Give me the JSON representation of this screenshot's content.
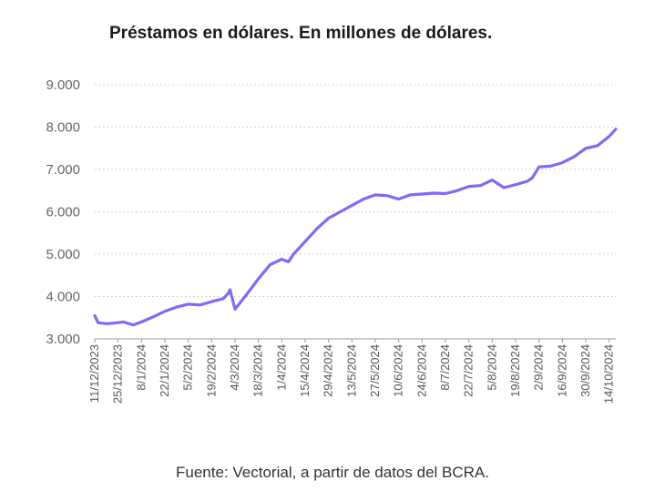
{
  "chart_data": {
    "type": "line",
    "title": "Préstamos en dólares. En millones de dólares.",
    "source": "Fuente: Vectorial, a partir de datos del BCRA.",
    "xlabel": "",
    "ylabel": "",
    "ylim": [
      3000,
      9000
    ],
    "yticks": [
      3000,
      4000,
      5000,
      6000,
      7000,
      8000,
      9000
    ],
    "ytick_labels": [
      "3.000",
      "4.000",
      "5.000",
      "6.000",
      "7.000",
      "8.000",
      "9.000"
    ],
    "x_ticks": [
      "11/12/2023",
      "25/12/2023",
      "8/1/2024",
      "22/1/2024",
      "5/2/2024",
      "19/2/2024",
      "4/3/2024",
      "18/3/2024",
      "1/4/2024",
      "15/4/2024",
      "29/4/2024",
      "13/5/2024",
      "27/5/2024",
      "10/6/2024",
      "24/6/2024",
      "8/7/2024",
      "22/7/2024",
      "5/8/2024",
      "19/8/2024",
      "2/9/2024",
      "16/9/2024",
      "30/9/2024",
      "14/10/2024"
    ],
    "grid": true,
    "line_color": "#7b6cf6",
    "series": [
      {
        "x": [
          "11/12/2023",
          "13/12/2023",
          "18/12/2023",
          "22/12/2023",
          "28/12/2023",
          "3/1/2024",
          "8/1/2024",
          "15/1/2024",
          "22/1/2024",
          "29/1/2024",
          "5/2/2024",
          "12/2/2024",
          "19/2/2024",
          "26/2/2024",
          "29/2/2024",
          "1/3/2024",
          "4/3/2024",
          "11/3/2024",
          "18/3/2024",
          "25/3/2024",
          "1/4/2024",
          "5/4/2024",
          "8/4/2024",
          "15/4/2024",
          "22/4/2024",
          "29/4/2024",
          "6/5/2024",
          "13/5/2024",
          "20/5/2024",
          "27/5/2024",
          "3/6/2024",
          "10/6/2024",
          "17/6/2024",
          "24/6/2024",
          "1/7/2024",
          "8/7/2024",
          "15/7/2024",
          "22/7/2024",
          "29/7/2024",
          "5/8/2024",
          "12/8/2024",
          "19/8/2024",
          "26/8/2024",
          "29/8/2024",
          "2/9/2024",
          "9/9/2024",
          "16/9/2024",
          "23/9/2024",
          "30/9/2024",
          "7/10/2024",
          "14/10/2024",
          "18/10/2024"
        ],
        "values": [
          3550,
          3380,
          3360,
          3370,
          3400,
          3330,
          3400,
          3520,
          3650,
          3750,
          3820,
          3800,
          3880,
          3950,
          4080,
          4160,
          3700,
          4050,
          4420,
          4750,
          4880,
          4820,
          5000,
          5300,
          5600,
          5850,
          6000,
          6150,
          6300,
          6400,
          6380,
          6300,
          6400,
          6420,
          6440,
          6430,
          6500,
          6600,
          6620,
          6750,
          6570,
          6640,
          6720,
          6800,
          7060,
          7080,
          7160,
          7300,
          7500,
          7560,
          7780,
          7950
        ]
      }
    ]
  }
}
